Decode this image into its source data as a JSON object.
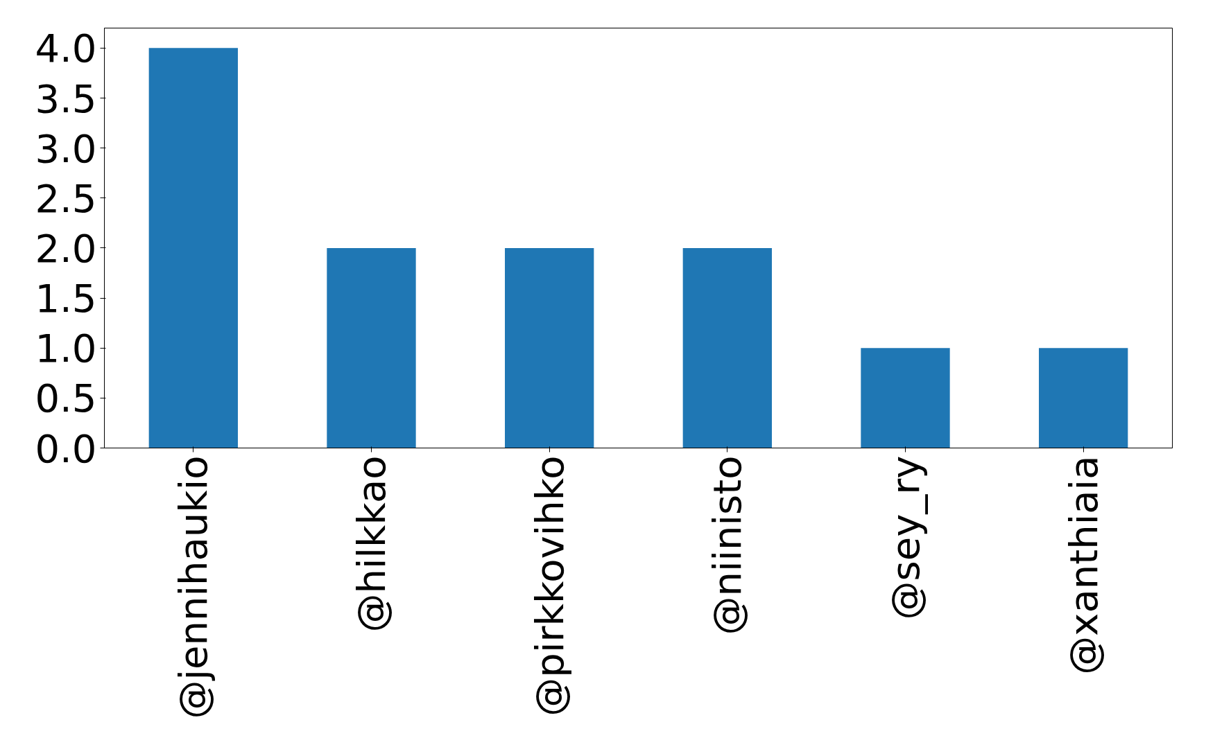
{
  "chart_data": {
    "type": "bar",
    "categories": [
      "@jennihaukio",
      "@hilkkao",
      "@pirkkovihko",
      "@niinisto",
      "@sey_ry",
      "@xanthiaia"
    ],
    "values": [
      4,
      2,
      2,
      2,
      1,
      1
    ],
    "color": "#1f77b4",
    "ylim": [
      0,
      4.2
    ],
    "yticks": [
      {
        "value": 0,
        "label": "0.0"
      },
      {
        "value": 0.5,
        "label": "0.5"
      },
      {
        "value": 1,
        "label": "1.0"
      },
      {
        "value": 1.5,
        "label": "1.5"
      },
      {
        "value": 2,
        "label": "2.0"
      },
      {
        "value": 2.5,
        "label": "2.5"
      },
      {
        "value": 3,
        "label": "3.0"
      },
      {
        "value": 3.5,
        "label": "3.5"
      },
      {
        "value": 4,
        "label": "4.0"
      }
    ],
    "grid": false
  }
}
